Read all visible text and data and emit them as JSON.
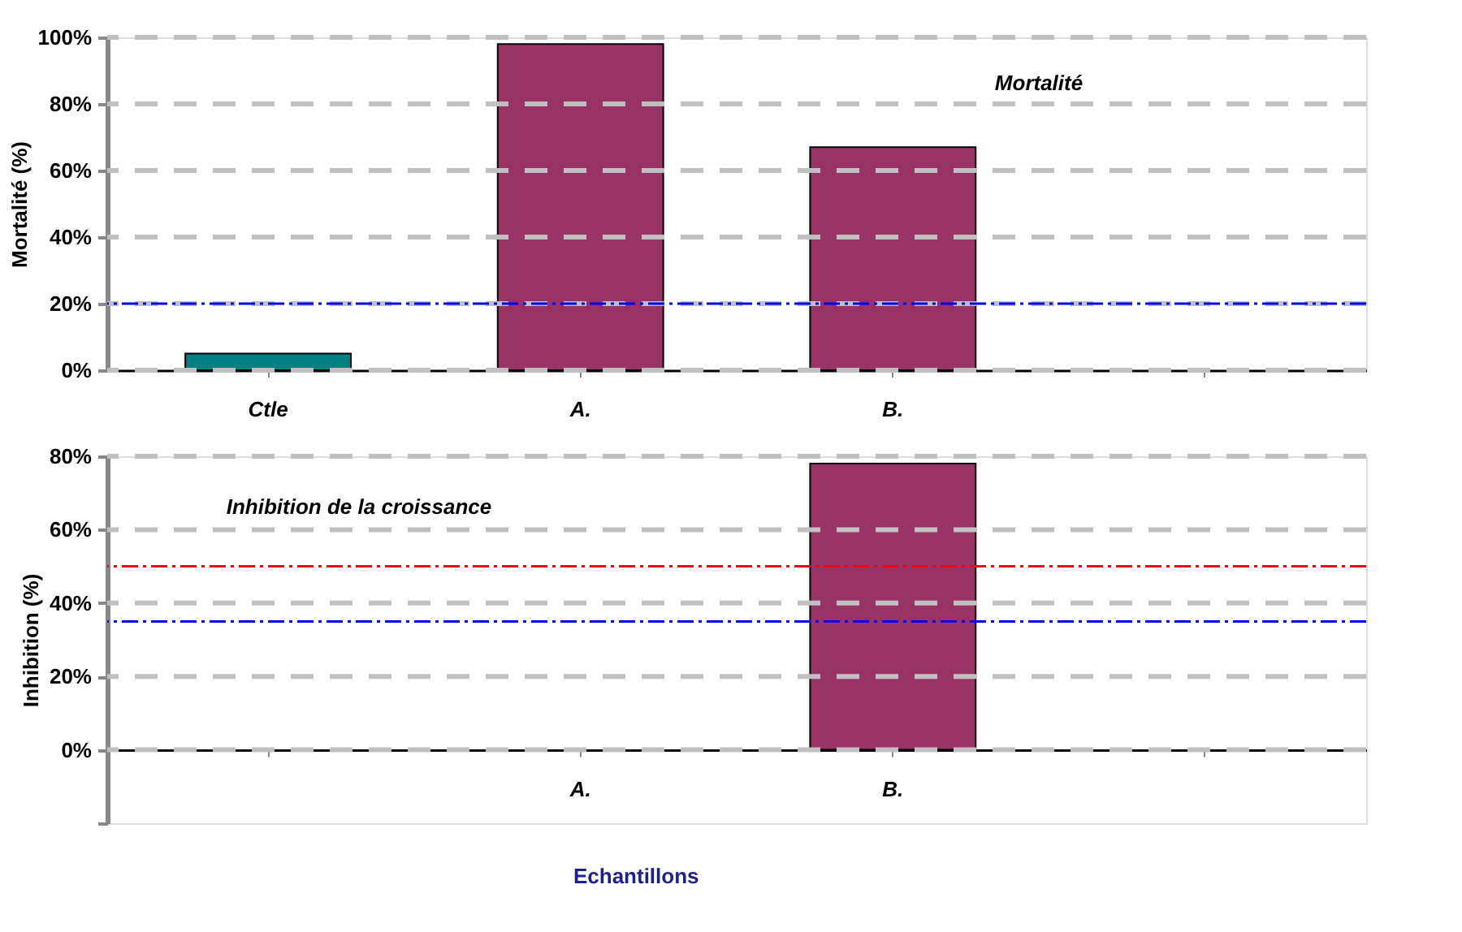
{
  "chart_data": [
    {
      "type": "bar",
      "categories": [
        "Ctle",
        "A.",
        "B.",
        null
      ],
      "values": [
        5,
        98,
        67,
        null
      ],
      "colors": [
        "#008080",
        "#993366",
        "#993366",
        "#993366"
      ],
      "ylabel": "Mortalité  (%)",
      "ylim": [
        0,
        100
      ],
      "yticks": [
        {
          "value": 0,
          "label": "0%"
        },
        {
          "value": 20,
          "label": "20%"
        },
        {
          "value": 40,
          "label": "40%"
        },
        {
          "value": 60,
          "label": "60%"
        },
        {
          "value": 80,
          "label": "80%"
        },
        {
          "value": 100,
          "label": "100%"
        }
      ],
      "grid": "y",
      "ref_lines": [
        {
          "axis": "y",
          "value": 20,
          "label": null,
          "color": "#0000ff"
        }
      ],
      "annotations": [
        "Mortalité"
      ]
    },
    {
      "type": "bar",
      "categories": [
        null,
        "A.",
        "B.",
        null
      ],
      "values": [
        null,
        null,
        78,
        null
      ],
      "colors": [
        "#993366",
        "#993366",
        "#993366",
        "#993366"
      ],
      "ylabel": "Inhibition  (%)",
      "xlabel": "Echantillons",
      "ylim": [
        -20,
        80
      ],
      "yticks": [
        {
          "value": -20,
          "label": null
        },
        {
          "value": 0,
          "label": "0%"
        },
        {
          "value": 20,
          "label": "20%"
        },
        {
          "value": 40,
          "label": "40%"
        },
        {
          "value": 60,
          "label": "60%"
        },
        {
          "value": 80,
          "label": "80%"
        }
      ],
      "grid": "y",
      "ref_lines": [
        {
          "axis": "y",
          "value": 50,
          "label": null,
          "color": "#ff0000"
        },
        {
          "axis": "y",
          "value": 35,
          "label": null,
          "color": "#0000ff"
        }
      ],
      "annotations": [
        "Inhibition de la croissance"
      ]
    }
  ]
}
